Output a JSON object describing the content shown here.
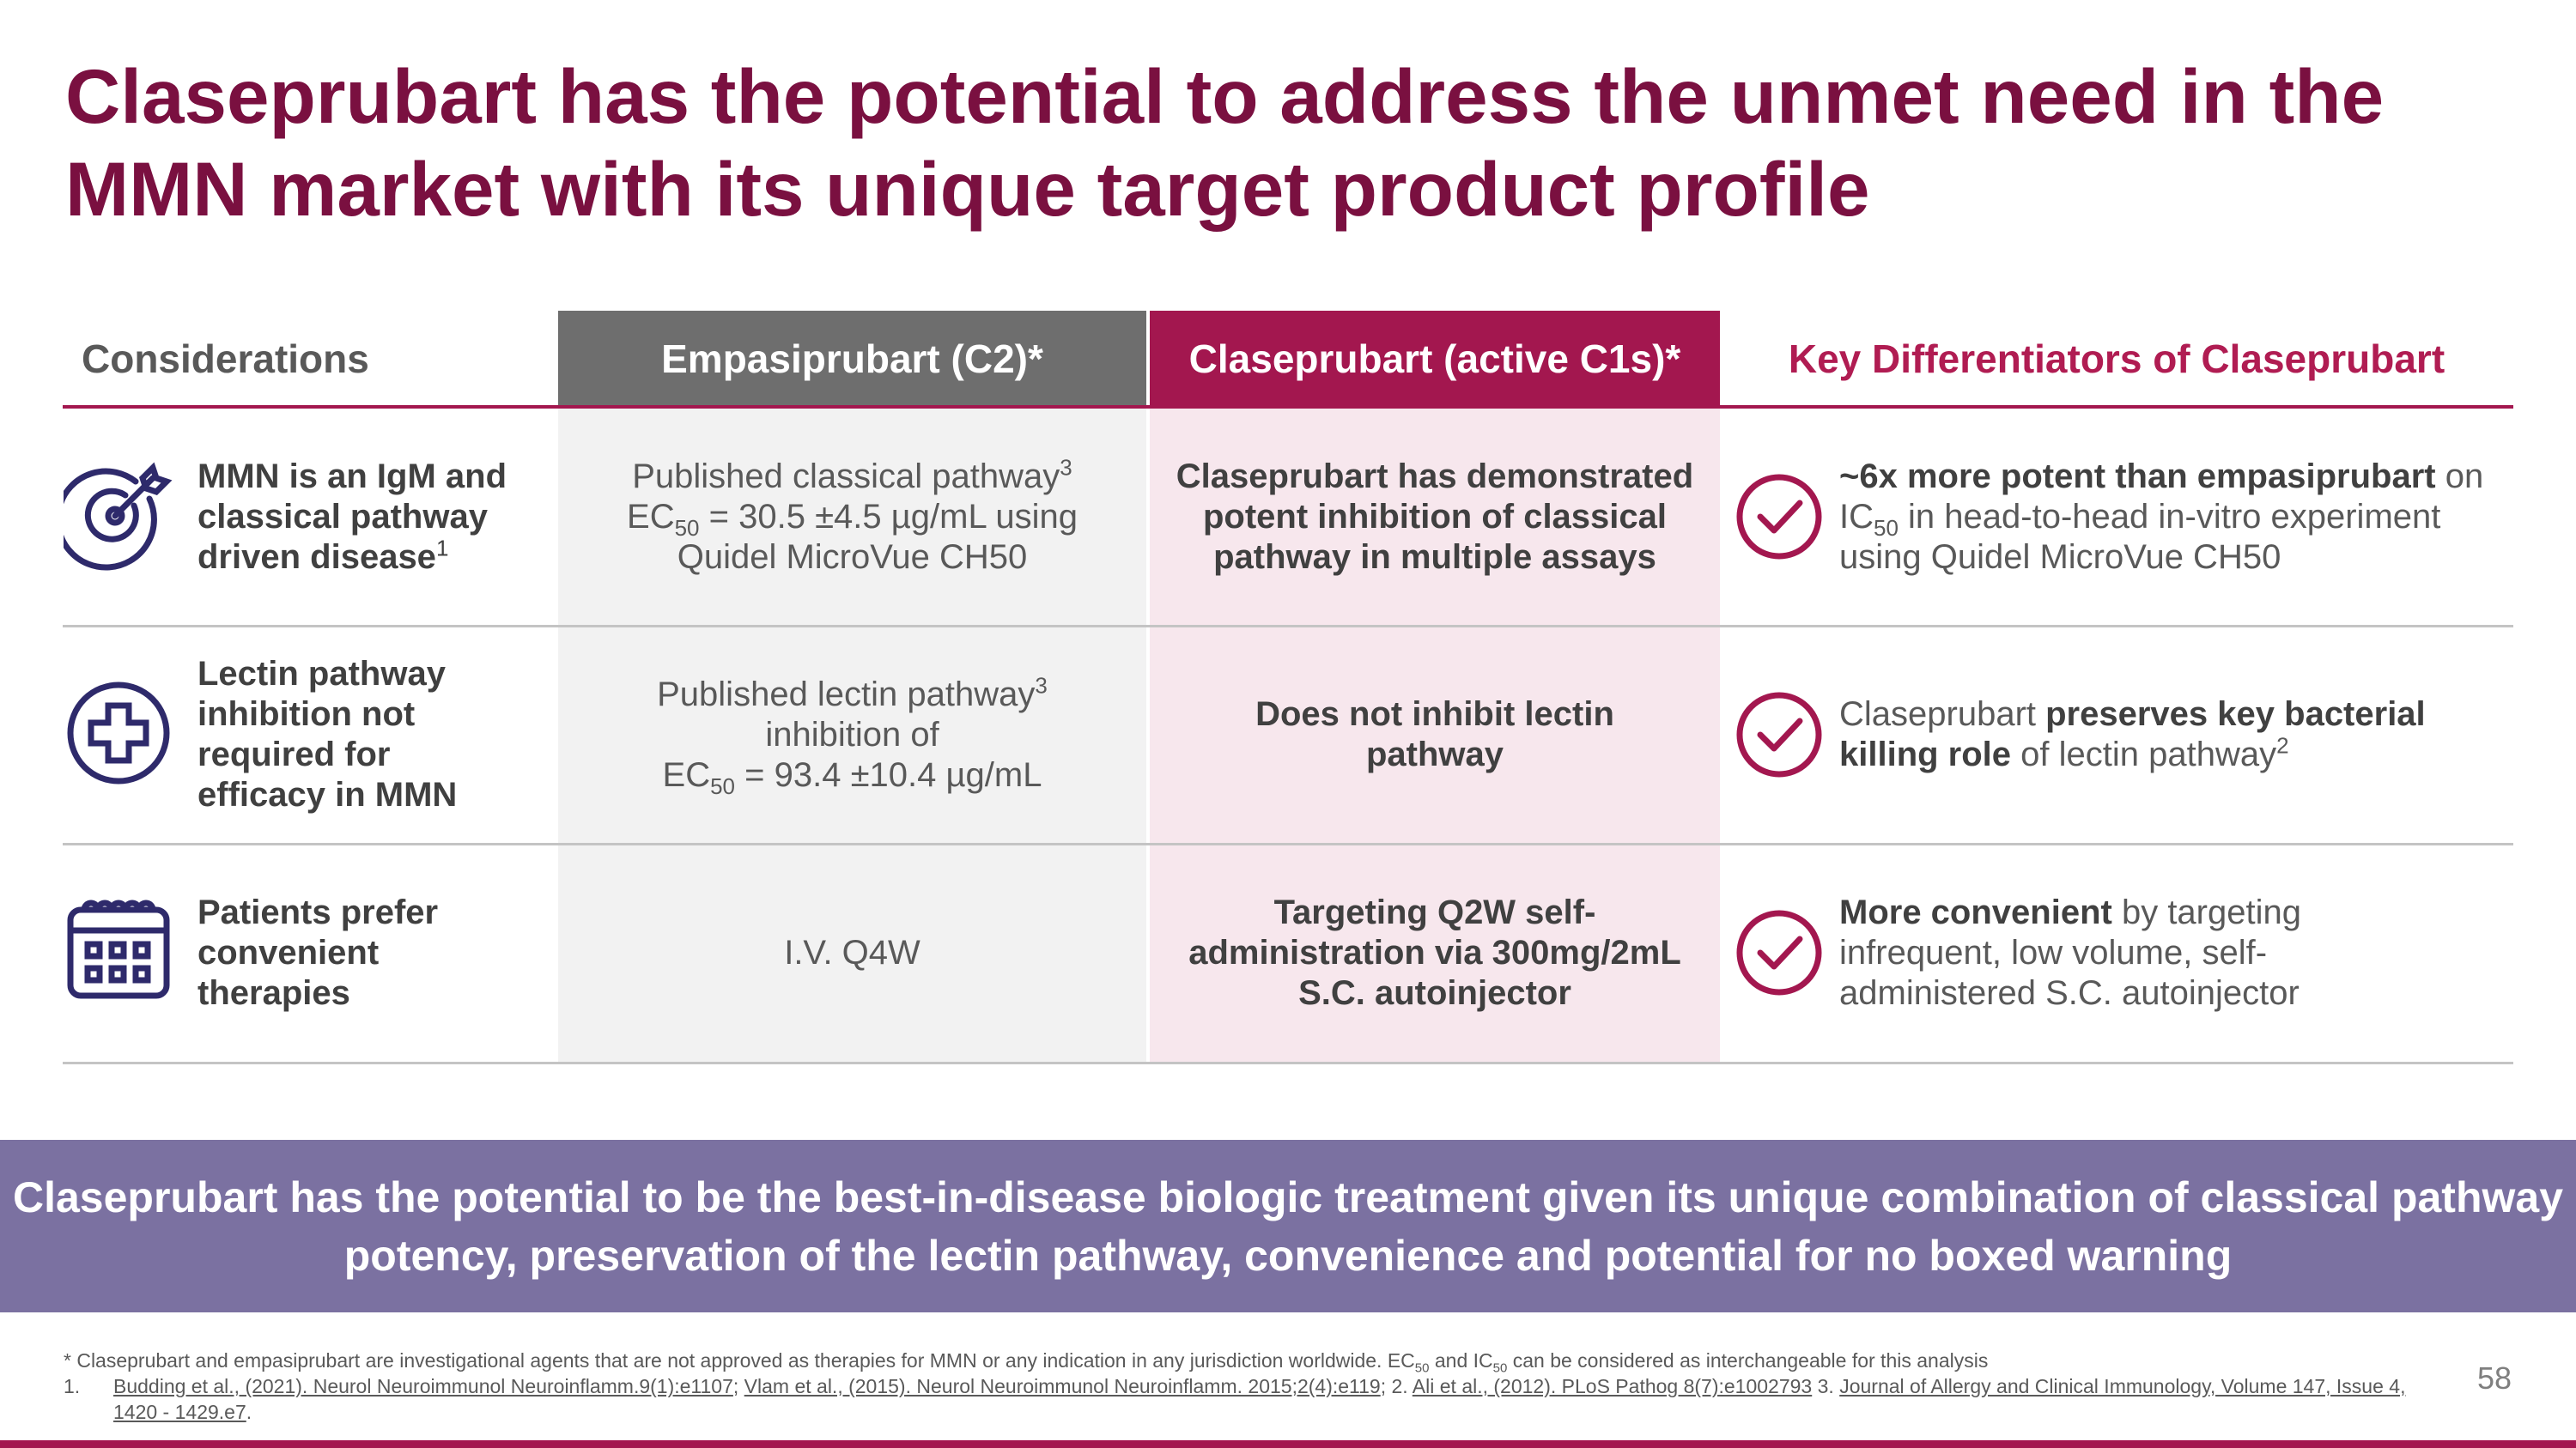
{
  "title": "Claseprubart has the potential to address the unmet need in the MMN market with its unique target product profile",
  "table": {
    "header": [
      "Considerations",
      "Empasiprubart (C2)*",
      "Claseprubart (active C1s)*",
      "Key Differentiators of Claseprubart"
    ],
    "rows": [
      {
        "consideration": [
          "MMN is an IgM and classical pathway driven disease",
          "1"
        ],
        "empasiprubart": [
          "Published classical pathway",
          "3",
          "EC",
          "50",
          " = 30.5 ±4.5 µg/mL using Quidel MicroVue CH50"
        ],
        "claseprubart": "Claseprubart has demonstrated potent inhibition of classical pathway in multiple assays",
        "differentiator": [
          "~6x more potent than empasiprubart",
          " on IC",
          "50",
          " in head-to-head in-vitro experiment using Quidel MicroVue CH50"
        ]
      },
      {
        "consideration": [
          "Lectin pathway inhibition not required for efficacy in MMN"
        ],
        "empasiprubart": [
          "Published lectin pathway",
          "3",
          "inhibition of",
          "EC",
          "50",
          " = 93.4 ±10.4 µg/mL"
        ],
        "claseprubart": "Does not inhibit lectin pathway",
        "differentiator": [
          "Claseprubart ",
          "preserves key bacterial killing role",
          " of lectin pathway",
          "2"
        ]
      },
      {
        "consideration": [
          "Patients prefer convenient therapies"
        ],
        "empasiprubart": [
          "I.V. Q4W"
        ],
        "claseprubart": "Targeting Q2W self-administration via 300mg/2mL S.C. autoinjector",
        "differentiator": [
          "More convenient",
          " by targeting infrequent, low volume, self-administered S.C. autoinjector"
        ]
      }
    ]
  },
  "banner": "Claseprubart has the potential to be the best-in-disease biologic treatment given its unique combination of classical pathway potency, preservation of the lectin pathway, convenience and potential for no boxed warning",
  "footnotes": {
    "asterisk": [
      "* Claseprubart and empasiprubart are investigational agents that are not approved as therapies for MMN or any indication in any jurisdiction worldwide. EC",
      "50",
      " and IC",
      "50",
      " can be considered as interchangeable for this analysis"
    ],
    "references": {
      "number": "1.",
      "parts": [
        "Budding et al., (2021). Neurol Neuroimmunol Neuroinflamm.9(1):e1107",
        "; ",
        "Vlam et al., (2015). Neurol Neuroimmunol Neuroinflamm. 2015;2(4):e119",
        "; 2. ",
        "Ali et al., (2012). PLoS Pathog 8(7):e1002793",
        " 3. ",
        "Journal of Allergy and Clinical Immunology, Volume 147, Issue 4, 1420 - 1429.e7",
        "."
      ]
    }
  },
  "page_number": "58"
}
